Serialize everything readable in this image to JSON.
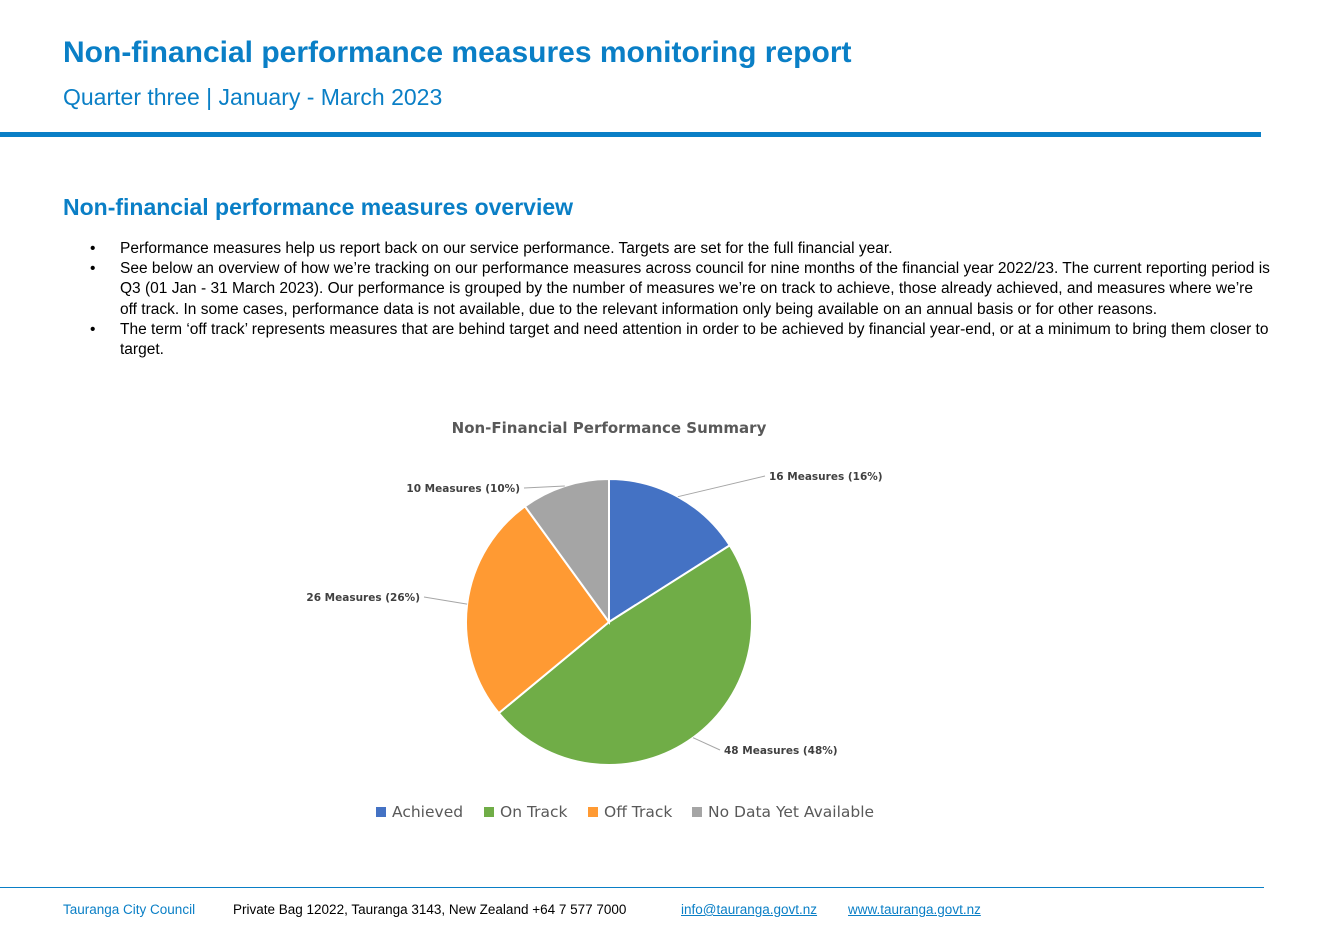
{
  "header": {
    "title": "Non-financial performance measures monitoring report",
    "subtitle": "Quarter three | January - March 2023",
    "accent_color": "#0a7fc6"
  },
  "overview": {
    "heading": "Non-financial performance measures overview",
    "bullet_glyph": "•",
    "bullets": [
      "Performance measures help us report back on our service performance. Targets are set for the full financial year.",
      "See below an overview of how we’re tracking on our performance measures across council for nine months of the financial year 2022/23. The current reporting period is Q3 (01 Jan - 31 March 2023). Our performance is grouped by the number of measures we’re on track to achieve, those already achieved, and measures where we’re off track. In some cases, performance data is not available, due to the relevant information only being available on an annual basis or for other reasons.",
      "The term ‘off track’ represents measures that are behind target and need attention in order to be achieved by financial year-end, or at a minimum to bring them closer to target."
    ]
  },
  "chart_data": {
    "type": "pie",
    "title": "Non-Financial Performance Summary",
    "categories": [
      "Achieved",
      "On Track",
      "Off Track",
      "No Data Yet Available"
    ],
    "values": [
      16,
      48,
      26,
      10
    ],
    "data_labels": [
      "16 Measures (16%)",
      "48 Measures (48%)",
      "26 Measures (26%)",
      "10 Measures (10%)"
    ],
    "colors": [
      "#4472c4",
      "#70ad47",
      "#ff9a33",
      "#a5a5a5"
    ],
    "legend_position": "bottom",
    "start_angle": "12 o'clock, clockwise"
  },
  "footer": {
    "org": "Tauranga City Council",
    "address": "Private Bag 12022, Tauranga 3143, New Zealand   +64 7 577 7000",
    "email": "info@tauranga.govt.nz",
    "website": "www.tauranga.govt.nz"
  }
}
